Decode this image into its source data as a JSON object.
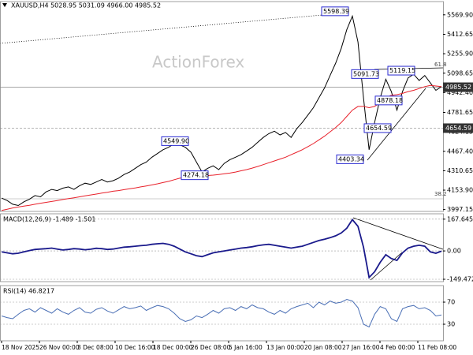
{
  "header": {
    "title": "XAUUSD,H4  5028.95 5031.09 4966.00 4985.52",
    "watermark": "ActionForex"
  },
  "chart_data": [
    {
      "type": "line",
      "ylim": [
        3982,
        5677
      ],
      "yticks": [
        {
          "value": 5569.9,
          "label": "5569.90"
        },
        5412.65,
        {
          "value": 5255.9,
          "label": "5255.90"
        },
        5098.65,
        {
          "value": 4942.4,
          "label": "4942.40"
        },
        4781.65,
        4624.15,
        {
          "value": 4467.4,
          "label": "4467.40"
        },
        4310.65,
        {
          "value": 4153.9,
          "label": "4153.90"
        },
        3997.15
      ],
      "series": [
        {
          "color": "#000000",
          "values": [
            4090,
            4070,
            4040,
            4030,
            4060,
            4080,
            4110,
            4100,
            4140,
            4160,
            4150,
            4170,
            4180,
            4160,
            4190,
            4210,
            4200,
            4220,
            4240,
            4220,
            4230,
            4250,
            4280,
            4300,
            4330,
            4360,
            4380,
            4420,
            4450,
            4480,
            4500,
            4530,
            4520,
            4500,
            4460,
            4380,
            4300,
            4330,
            4350,
            4320,
            4370,
            4400,
            4420,
            4440,
            4470,
            4500,
            4540,
            4580,
            4610,
            4630,
            4600,
            4620,
            4580,
            4650,
            4700,
            4760,
            4820,
            4900,
            4980,
            5080,
            5180,
            5300,
            5450,
            5560,
            5350,
            4900,
            4480,
            4700,
            4900,
            5050,
            4950,
            4800,
            4950,
            5060,
            5090,
            5040,
            5080,
            5020,
            4960,
            4990
          ]
        },
        {
          "color": "#e8202a",
          "values": [
            3990,
            4000,
            4010,
            4018,
            4025,
            4032,
            4040,
            4048,
            4055,
            4062,
            4070,
            4078,
            4085,
            4092,
            4100,
            4108,
            4115,
            4122,
            4130,
            4137,
            4145,
            4150,
            4158,
            4165,
            4172,
            4180,
            4188,
            4196,
            4205,
            4215,
            4225,
            4238,
            4250,
            4258,
            4264,
            4268,
            4270,
            4272,
            4275,
            4280,
            4286,
            4292,
            4300,
            4310,
            4320,
            4332,
            4345,
            4360,
            4375,
            4390,
            4405,
            4420,
            4440,
            4460,
            4480,
            4505,
            4530,
            4560,
            4590,
            4625,
            4660,
            4700,
            4750,
            4800,
            4830,
            4830,
            4820,
            4830,
            4860,
            4900,
            4920,
            4925,
            4935,
            4950,
            4960,
            4975,
            4990,
            5000,
            4995,
            4990
          ]
        }
      ],
      "annotations": [
        5598.39,
        5091.73,
        5119.15,
        4878.18,
        4654.59,
        4403.34,
        {
          "value": 4549.9,
          "label": "4549.90"
        },
        4274.18
      ],
      "price_markers": [
        4985.52,
        4654.59
      ],
      "fib_labels": [
        61.8,
        38.2
      ]
    },
    {
      "type": "line",
      "label": "MACD(12,26,9) -1.489 -1.501",
      "ylim": [
        -162,
        196
      ],
      "yticks": [
        167.645,
        {
          "value": 0,
          "label": "0.00"
        },
        -149.472
      ],
      "series": [
        {
          "color": "#1a1a8c",
          "values": [
            -5,
            -10,
            -15,
            -12,
            -5,
            2,
            8,
            10,
            12,
            15,
            10,
            5,
            8,
            12,
            10,
            6,
            9,
            14,
            12,
            8,
            10,
            15,
            20,
            22,
            25,
            28,
            30,
            35,
            38,
            40,
            35,
            25,
            10,
            -5,
            -15,
            -25,
            -30,
            -20,
            -10,
            -5,
            0,
            5,
            10,
            15,
            18,
            22,
            28,
            32,
            35,
            30,
            25,
            20,
            15,
            20,
            25,
            35,
            45,
            55,
            62,
            70,
            80,
            95,
            120,
            165,
            130,
            20,
            -140,
            -110,
            -60,
            -20,
            -40,
            -50,
            -10,
            15,
            25,
            30,
            25,
            -5,
            -12,
            -1.489
          ]
        }
      ]
    },
    {
      "type": "line",
      "label": "RSI(14) 46.8217",
      "ylim": [
        0,
        100
      ],
      "yticks": [
        70,
        30
      ],
      "series": [
        {
          "color": "#4a6fb5",
          "values": [
            45,
            42,
            40,
            48,
            55,
            58,
            52,
            60,
            55,
            50,
            58,
            52,
            48,
            55,
            60,
            52,
            50,
            57,
            60,
            54,
            50,
            56,
            62,
            58,
            60,
            63,
            55,
            60,
            64,
            62,
            58,
            50,
            40,
            35,
            38,
            45,
            42,
            48,
            55,
            50,
            58,
            60,
            55,
            62,
            58,
            65,
            60,
            58,
            52,
            48,
            55,
            50,
            58,
            62,
            65,
            68,
            60,
            70,
            65,
            72,
            68,
            70,
            75,
            72,
            60,
            30,
            25,
            48,
            62,
            58,
            40,
            35,
            58,
            62,
            64,
            58,
            60,
            55,
            45,
            46.8217
          ]
        }
      ],
      "xtick_labels": [
        "18 Nov 2025",
        "26 Nov 00:00",
        "3 Dec 08:00",
        "10 Dec 16:00",
        "18 Dec 00:00",
        "26 Dec 08:00",
        "5 Jan 16:00",
        "13 Jan 00:00",
        "20 Jan 08:00",
        "27 Jan 16:00",
        "4 Feb 00:00",
        "11 Feb 08:00"
      ]
    }
  ]
}
